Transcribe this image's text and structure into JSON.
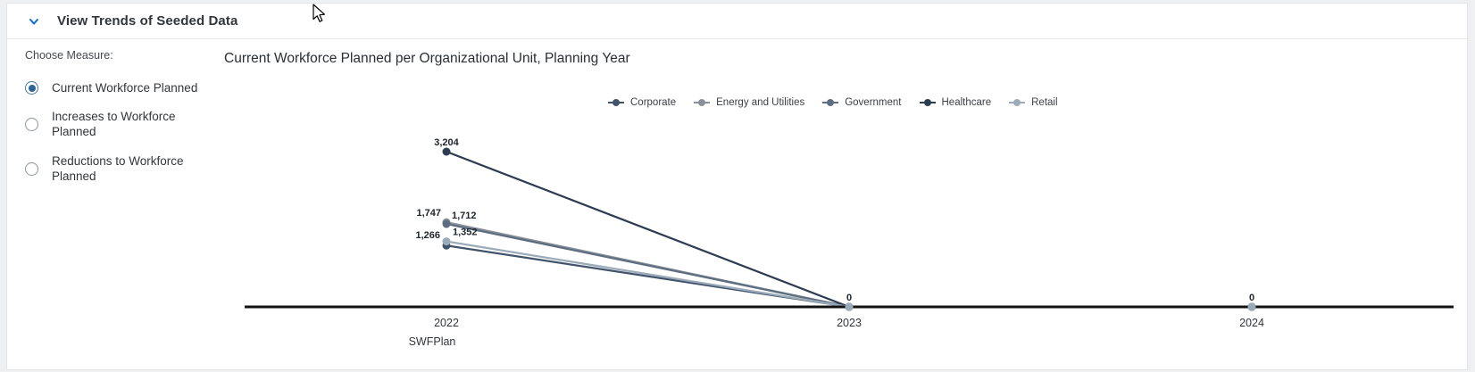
{
  "header": {
    "title": "View Trends of Seeded Data"
  },
  "icons": {
    "collapse": "chevron-down-icon",
    "cursor": "mouse-pointer-icon",
    "radio": "radio-button-icon",
    "legend_marker": "line-dot-marker-icon"
  },
  "sidebar": {
    "label": "Choose Measure:",
    "options": [
      {
        "label": "Current Workforce Planned",
        "selected": true
      },
      {
        "label": "Increases to Workforce Planned",
        "selected": false
      },
      {
        "label": "Reductions to Workforce Planned",
        "selected": false
      }
    ]
  },
  "chart": {
    "title": "Current Workforce Planned per Organizational Unit, Planning Year"
  },
  "chart_data": {
    "type": "line",
    "title": "Current Workforce Planned per Organizational Unit, Planning Year",
    "x": [
      "2022",
      "2023",
      "2024"
    ],
    "x_axis_title": "SWFPlan",
    "ylim": [
      0,
      3204
    ],
    "grid": false,
    "legend_position": "top",
    "axis_color": "#111111",
    "data_label_color": "#20262e",
    "tick_label_color": "#32363a",
    "series": [
      {
        "name": "Corporate",
        "color": "#41536b",
        "values": [
          1266,
          0,
          0
        ],
        "label_anchor": "end",
        "label_dx": -7,
        "label_dy": -8
      },
      {
        "name": "Energy and Utilities",
        "color": "#8a9099",
        "values": [
          1747,
          0,
          0
        ],
        "label_anchor": "end",
        "label_dx": -6,
        "label_dy": -7
      },
      {
        "name": "Government",
        "color": "#5d6e81",
        "values": [
          1712,
          0,
          0
        ],
        "label_anchor": "start",
        "label_dx": 6,
        "label_dy": -6
      },
      {
        "name": "Healthcare",
        "color": "#2d3c52",
        "values": [
          3204,
          0,
          0
        ],
        "label_anchor": "middle",
        "label_dx": 0,
        "label_dy": -7
      },
      {
        "name": "Retail",
        "color": "#9cabb9",
        "values": [
          1352,
          0,
          0
        ],
        "label_anchor": "start",
        "label_dx": 7,
        "label_dy": -7
      }
    ]
  },
  "colors": {
    "accent_blue": "#0a6ed1",
    "radio_selected": "#2d6497",
    "text_dark": "#32363a",
    "divider": "#e9e9eb"
  }
}
